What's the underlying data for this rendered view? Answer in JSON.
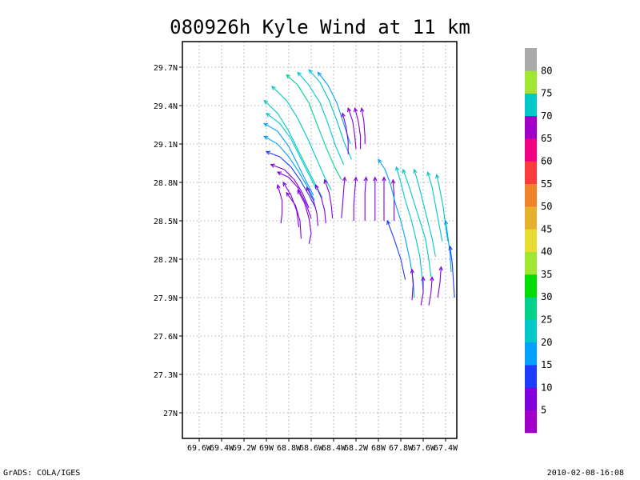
{
  "chart_data": {
    "type": "streamline",
    "title": "080926h Kyle Wind at 11 km",
    "xlabel": "",
    "ylabel": "",
    "xlim": [
      -69.75,
      -67.3
    ],
    "ylim": [
      26.8,
      29.9
    ],
    "grid": true,
    "x_ticks": [
      {
        "value": -69.6,
        "label": "69.6W"
      },
      {
        "value": -69.4,
        "label": "69.4W"
      },
      {
        "value": -69.2,
        "label": "69.2W"
      },
      {
        "value": -69.0,
        "label": "69W"
      },
      {
        "value": -68.8,
        "label": "68.8W"
      },
      {
        "value": -68.6,
        "label": "68.6W"
      },
      {
        "value": -68.4,
        "label": "68.4W"
      },
      {
        "value": -68.2,
        "label": "68.2W"
      },
      {
        "value": -68.0,
        "label": "68W"
      },
      {
        "value": -67.8,
        "label": "67.8W"
      },
      {
        "value": -67.6,
        "label": "67.6W"
      },
      {
        "value": -67.4,
        "label": "67.4W"
      }
    ],
    "y_ticks": [
      {
        "value": 27.0,
        "label": "27N"
      },
      {
        "value": 27.3,
        "label": "27.3N"
      },
      {
        "value": 27.6,
        "label": "27.6N"
      },
      {
        "value": 27.9,
        "label": "27.9N"
      },
      {
        "value": 28.2,
        "label": "28.2N"
      },
      {
        "value": 28.5,
        "label": "28.5N"
      },
      {
        "value": 28.8,
        "label": "28.8N"
      },
      {
        "value": 29.1,
        "label": "29.1N"
      },
      {
        "value": 29.4,
        "label": "29.4N"
      },
      {
        "value": 29.7,
        "label": "29.7N"
      }
    ],
    "colorbar": {
      "labels": [
        "5",
        "10",
        "15",
        "20",
        "25",
        "30",
        "35",
        "40",
        "45",
        "50",
        "55",
        "60",
        "65",
        "70",
        "75",
        "80"
      ],
      "colors": [
        "#a000c8",
        "#8200dc",
        "#1e3cff",
        "#00a0ff",
        "#00c8c8",
        "#00d28c",
        "#00dc00",
        "#a0e632",
        "#e6dc32",
        "#e6af2d",
        "#f08228",
        "#fa3c3c",
        "#f00082",
        "#a000c8",
        "#00c8c8",
        "#a0e632",
        "#aaaaaa"
      ]
    },
    "streamlines": [
      {
        "speed": 25,
        "points": [
          [
            -68.82,
            29.64
          ],
          [
            -68.72,
            29.56
          ],
          [
            -68.62,
            29.42
          ],
          [
            -68.55,
            29.26
          ],
          [
            -68.47,
            29.08
          ],
          [
            -68.39,
            28.92
          ],
          [
            -68.33,
            28.82
          ]
        ]
      },
      {
        "speed": 22,
        "points": [
          [
            -68.72,
            29.66
          ],
          [
            -68.62,
            29.56
          ],
          [
            -68.52,
            29.42
          ],
          [
            -68.45,
            29.26
          ],
          [
            -68.38,
            29.08
          ],
          [
            -68.31,
            28.94
          ]
        ]
      },
      {
        "speed": 20,
        "points": [
          [
            -68.62,
            29.68
          ],
          [
            -68.52,
            29.58
          ],
          [
            -68.44,
            29.44
          ],
          [
            -68.37,
            29.28
          ],
          [
            -68.3,
            29.1
          ],
          [
            -68.24,
            28.98
          ]
        ]
      },
      {
        "speed": 18,
        "points": [
          [
            -68.54,
            29.66
          ],
          [
            -68.45,
            29.56
          ],
          [
            -68.37,
            29.42
          ],
          [
            -68.31,
            29.26
          ],
          [
            -68.25,
            29.1
          ]
        ]
      },
      {
        "speed": 24,
        "points": [
          [
            -68.95,
            29.55
          ],
          [
            -68.82,
            29.44
          ],
          [
            -68.72,
            29.3
          ],
          [
            -68.63,
            29.14
          ],
          [
            -68.55,
            28.98
          ],
          [
            -68.48,
            28.84
          ],
          [
            -68.42,
            28.74
          ]
        ]
      },
      {
        "speed": 22,
        "points": [
          [
            -69.02,
            29.44
          ],
          [
            -68.9,
            29.34
          ],
          [
            -68.8,
            29.2
          ],
          [
            -68.71,
            29.04
          ],
          [
            -68.63,
            28.9
          ],
          [
            -68.56,
            28.78
          ],
          [
            -68.5,
            28.68
          ]
        ]
      },
      {
        "speed": 20,
        "points": [
          [
            -69.0,
            29.34
          ],
          [
            -68.88,
            29.26
          ],
          [
            -68.78,
            29.14
          ],
          [
            -68.7,
            29.0
          ],
          [
            -68.62,
            28.86
          ],
          [
            -68.55,
            28.74
          ]
        ]
      },
      {
        "speed": 17,
        "points": [
          [
            -69.02,
            29.26
          ],
          [
            -68.9,
            29.2
          ],
          [
            -68.8,
            29.08
          ],
          [
            -68.72,
            28.94
          ],
          [
            -68.64,
            28.8
          ],
          [
            -68.58,
            28.7
          ]
        ]
      },
      {
        "speed": 15,
        "points": [
          [
            -69.02,
            29.16
          ],
          [
            -68.9,
            29.1
          ],
          [
            -68.8,
            29.0
          ],
          [
            -68.71,
            28.88
          ],
          [
            -68.63,
            28.76
          ],
          [
            -68.57,
            28.66
          ]
        ]
      },
      {
        "speed": 12,
        "points": [
          [
            -69.0,
            29.04
          ],
          [
            -68.88,
            29.0
          ],
          [
            -68.78,
            28.92
          ],
          [
            -68.7,
            28.82
          ],
          [
            -68.62,
            28.7
          ],
          [
            -68.56,
            28.6
          ]
        ]
      },
      {
        "speed": 9,
        "points": [
          [
            -68.96,
            28.94
          ],
          [
            -68.84,
            28.9
          ],
          [
            -68.75,
            28.82
          ],
          [
            -68.68,
            28.72
          ],
          [
            -68.62,
            28.6
          ]
        ]
      },
      {
        "speed": 7,
        "points": [
          [
            -68.9,
            28.88
          ],
          [
            -68.8,
            28.84
          ],
          [
            -68.72,
            28.76
          ],
          [
            -68.65,
            28.64
          ],
          [
            -68.6,
            28.52
          ]
        ]
      },
      {
        "speed": 6,
        "points": [
          [
            -68.85,
            28.8
          ],
          [
            -68.78,
            28.7
          ],
          [
            -68.73,
            28.58
          ],
          [
            -68.71,
            28.45
          ]
        ]
      },
      {
        "speed": 5,
        "points": [
          [
            -68.9,
            28.78
          ],
          [
            -68.86,
            28.66
          ],
          [
            -68.86,
            28.56
          ],
          [
            -68.87,
            28.48
          ]
        ]
      },
      {
        "speed": 5,
        "points": [
          [
            -68.82,
            28.72
          ],
          [
            -68.74,
            28.62
          ],
          [
            -68.7,
            28.5
          ],
          [
            -68.69,
            28.36
          ]
        ]
      },
      {
        "speed": 5,
        "points": [
          [
            -68.72,
            28.74
          ],
          [
            -68.66,
            28.64
          ],
          [
            -68.62,
            28.52
          ],
          [
            -68.6,
            28.4
          ],
          [
            -68.62,
            28.32
          ]
        ]
      },
      {
        "speed": 5,
        "points": [
          [
            -68.64,
            28.76
          ],
          [
            -68.58,
            28.66
          ],
          [
            -68.55,
            28.56
          ],
          [
            -68.54,
            28.46
          ]
        ]
      },
      {
        "speed": 5,
        "points": [
          [
            -68.56,
            28.78
          ],
          [
            -68.51,
            28.68
          ],
          [
            -68.48,
            28.58
          ],
          [
            -68.47,
            28.48
          ]
        ]
      },
      {
        "speed": 6,
        "points": [
          [
            -68.48,
            28.82
          ],
          [
            -68.44,
            28.72
          ],
          [
            -68.42,
            28.62
          ],
          [
            -68.41,
            28.52
          ]
        ]
      },
      {
        "speed": 8,
        "points": [
          [
            -68.3,
            28.84
          ],
          [
            -68.31,
            28.74
          ],
          [
            -68.32,
            28.62
          ],
          [
            -68.33,
            28.52
          ]
        ]
      },
      {
        "speed": 6,
        "points": [
          [
            -68.2,
            28.84
          ],
          [
            -68.21,
            28.74
          ],
          [
            -68.22,
            28.62
          ],
          [
            -68.22,
            28.5
          ]
        ]
      },
      {
        "speed": 6,
        "points": [
          [
            -68.11,
            28.84
          ],
          [
            -68.12,
            28.72
          ],
          [
            -68.12,
            28.6
          ],
          [
            -68.12,
            28.5
          ]
        ]
      },
      {
        "speed": 6,
        "points": [
          [
            -68.03,
            28.84
          ],
          [
            -68.03,
            28.72
          ],
          [
            -68.03,
            28.6
          ],
          [
            -68.03,
            28.5
          ]
        ]
      },
      {
        "speed": 7,
        "points": [
          [
            -67.95,
            28.84
          ],
          [
            -67.95,
            28.72
          ],
          [
            -67.95,
            28.6
          ],
          [
            -67.95,
            28.5
          ]
        ]
      },
      {
        "speed": 7,
        "points": [
          [
            -67.87,
            28.82
          ],
          [
            -67.86,
            28.7
          ],
          [
            -67.86,
            28.58
          ],
          [
            -67.86,
            28.5
          ]
        ]
      },
      {
        "speed": 6,
        "points": [
          [
            -68.32,
            29.34
          ],
          [
            -68.29,
            29.24
          ],
          [
            -68.27,
            29.12
          ],
          [
            -68.27,
            29.02
          ]
        ]
      },
      {
        "speed": 6,
        "points": [
          [
            -68.27,
            29.38
          ],
          [
            -68.23,
            29.28
          ],
          [
            -68.21,
            29.16
          ],
          [
            -68.2,
            29.06
          ]
        ]
      },
      {
        "speed": 7,
        "points": [
          [
            -68.21,
            29.38
          ],
          [
            -68.18,
            29.28
          ],
          [
            -68.16,
            29.16
          ],
          [
            -68.16,
            29.06
          ]
        ]
      },
      {
        "speed": 7,
        "points": [
          [
            -68.15,
            29.38
          ],
          [
            -68.13,
            29.28
          ],
          [
            -68.12,
            29.16
          ],
          [
            -68.12,
            29.1
          ]
        ]
      },
      {
        "speed": 15,
        "points": [
          [
            -68.0,
            28.98
          ],
          [
            -67.94,
            28.9
          ],
          [
            -67.89,
            28.78
          ],
          [
            -67.85,
            28.64
          ],
          [
            -67.8,
            28.5
          ],
          [
            -67.76,
            28.36
          ],
          [
            -67.72,
            28.2
          ],
          [
            -67.69,
            28.04
          ],
          [
            -67.68,
            27.9
          ]
        ]
      },
      {
        "speed": 20,
        "points": [
          [
            -67.84,
            28.92
          ],
          [
            -67.8,
            28.8
          ],
          [
            -67.76,
            28.66
          ],
          [
            -67.71,
            28.52
          ],
          [
            -67.67,
            28.38
          ],
          [
            -67.63,
            28.22
          ],
          [
            -67.61,
            28.06
          ],
          [
            -67.6,
            27.94
          ]
        ]
      },
      {
        "speed": 22,
        "points": [
          [
            -67.78,
            28.9
          ],
          [
            -67.73,
            28.78
          ],
          [
            -67.68,
            28.64
          ],
          [
            -67.63,
            28.5
          ],
          [
            -67.58,
            28.36
          ],
          [
            -67.55,
            28.2
          ],
          [
            -67.53,
            28.06
          ]
        ]
      },
      {
        "speed": 24,
        "points": [
          [
            -67.68,
            28.9
          ],
          [
            -67.64,
            28.78
          ],
          [
            -67.6,
            28.64
          ],
          [
            -67.56,
            28.5
          ],
          [
            -67.52,
            28.36
          ],
          [
            -67.49,
            28.22
          ]
        ]
      },
      {
        "speed": 22,
        "points": [
          [
            -67.56,
            28.88
          ],
          [
            -67.52,
            28.76
          ],
          [
            -67.49,
            28.62
          ],
          [
            -67.46,
            28.48
          ],
          [
            -67.43,
            28.34
          ]
        ]
      },
      {
        "speed": 20,
        "points": [
          [
            -67.48,
            28.86
          ],
          [
            -67.45,
            28.74
          ],
          [
            -67.42,
            28.6
          ],
          [
            -67.4,
            28.46
          ],
          [
            -67.38,
            28.34
          ]
        ]
      },
      {
        "speed": 16,
        "points": [
          [
            -67.4,
            28.5
          ],
          [
            -67.38,
            28.38
          ],
          [
            -67.36,
            28.24
          ],
          [
            -67.35,
            28.1
          ]
        ]
      },
      {
        "speed": 12,
        "points": [
          [
            -67.36,
            28.3
          ],
          [
            -67.34,
            28.16
          ],
          [
            -67.33,
            28.02
          ],
          [
            -67.32,
            27.9
          ]
        ]
      },
      {
        "speed": 12,
        "points": [
          [
            -67.92,
            28.5
          ],
          [
            -67.86,
            28.36
          ],
          [
            -67.8,
            28.2
          ],
          [
            -67.76,
            28.04
          ]
        ]
      },
      {
        "speed": 8,
        "points": [
          [
            -67.7,
            28.12
          ],
          [
            -67.69,
            28.0
          ],
          [
            -67.7,
            27.88
          ]
        ]
      },
      {
        "speed": 6,
        "points": [
          [
            -67.6,
            28.06
          ],
          [
            -67.6,
            27.94
          ],
          [
            -67.62,
            27.84
          ]
        ]
      },
      {
        "speed": 6,
        "points": [
          [
            -67.52,
            28.06
          ],
          [
            -67.53,
            27.94
          ],
          [
            -67.55,
            27.84
          ]
        ]
      },
      {
        "speed": 6,
        "points": [
          [
            -67.44,
            28.14
          ],
          [
            -67.45,
            28.02
          ],
          [
            -67.47,
            27.9
          ]
        ]
      }
    ]
  },
  "footer": {
    "left": "GrADS: COLA/IGES",
    "right": "2010-02-08-16:08"
  }
}
